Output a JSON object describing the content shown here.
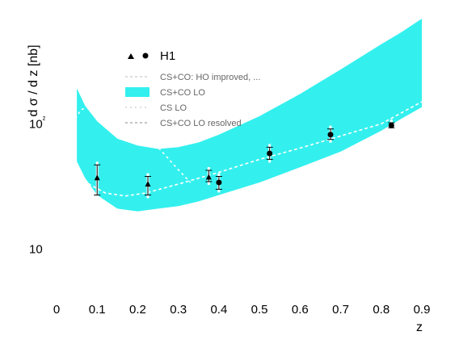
{
  "chart_data": {
    "type": "scatter",
    "title": "",
    "xlabel": "z",
    "ylabel": "d σ / d z  [nb]",
    "xlim": [
      0,
      0.9
    ],
    "ylim": [
      5,
      500
    ],
    "yscale": "log",
    "grid": false,
    "legend_position": "top-left",
    "x_ticks": [
      "0",
      "0.1",
      "0.2",
      "0.3",
      "0.4",
      "0.5",
      "0.6",
      "0.7",
      "0.8",
      "0.9"
    ],
    "y_ticks": [
      {
        "value": 10,
        "label": "10"
      },
      {
        "value": 100,
        "label": "10²"
      }
    ],
    "colors": {
      "band": "#33f0ee",
      "data_marker": "#000000",
      "curve": "#ffffff",
      "axis": "#ffffff"
    },
    "legend": {
      "h1": "H1",
      "items": [
        "CS+CO: HO improved, ...",
        "CS+CO LO",
        "CS LO",
        "CS+CO LO resolved"
      ]
    },
    "band": {
      "name": "CS+CO LO",
      "x": [
        0.05,
        0.07,
        0.1,
        0.15,
        0.2,
        0.25,
        0.3,
        0.35,
        0.4,
        0.5,
        0.6,
        0.7,
        0.8,
        0.85,
        0.9
      ],
      "upper": [
        192,
        140,
        105,
        76,
        67,
        63,
        65,
        71,
        82,
        115,
        173,
        272,
        432,
        540,
        692
      ],
      "lower": [
        50,
        37,
        27,
        21,
        20,
        21,
        22,
        24,
        27,
        34,
        45,
        60,
        88,
        110,
        136
      ]
    },
    "series": [
      {
        "type": "line",
        "style": "dashed",
        "name": "CS+CO LO resolved",
        "x": [
          0.05,
          0.08,
          0.12,
          0.17,
          0.22,
          0.3,
          0.4,
          0.5,
          0.6,
          0.7,
          0.8,
          0.9
        ],
        "y": [
          42,
          33,
          28,
          26.5,
          28,
          33,
          41,
          52,
          64,
          80,
          100,
          150
        ]
      },
      {
        "type": "line",
        "style": "dashed",
        "name": "CS LO",
        "x": [
          0.04,
          0.06,
          0.08,
          0.1,
          0.15,
          0.2,
          0.25,
          0.3,
          0.33
        ],
        "y": [
          100,
          130,
          135,
          132,
          118,
          93,
          65,
          43,
          34
        ]
      },
      {
        "type": "scatter",
        "marker": "triangle",
        "x": [
          0.1,
          0.225,
          0.375
        ],
        "y": [
          37,
          33,
          37.5
        ],
        "yerr_low": [
          10,
          6,
          3
        ],
        "yerr_high": [
          10,
          5,
          5
        ]
      },
      {
        "type": "scatter",
        "marker": "circle",
        "x": [
          0.4,
          0.525,
          0.675,
          0.825
        ],
        "y": [
          34,
          58,
          82,
          97
        ],
        "yerr_low": [
          4,
          6,
          7,
          4
        ],
        "yerr_high": [
          4,
          7,
          9,
          5
        ]
      }
    ]
  }
}
